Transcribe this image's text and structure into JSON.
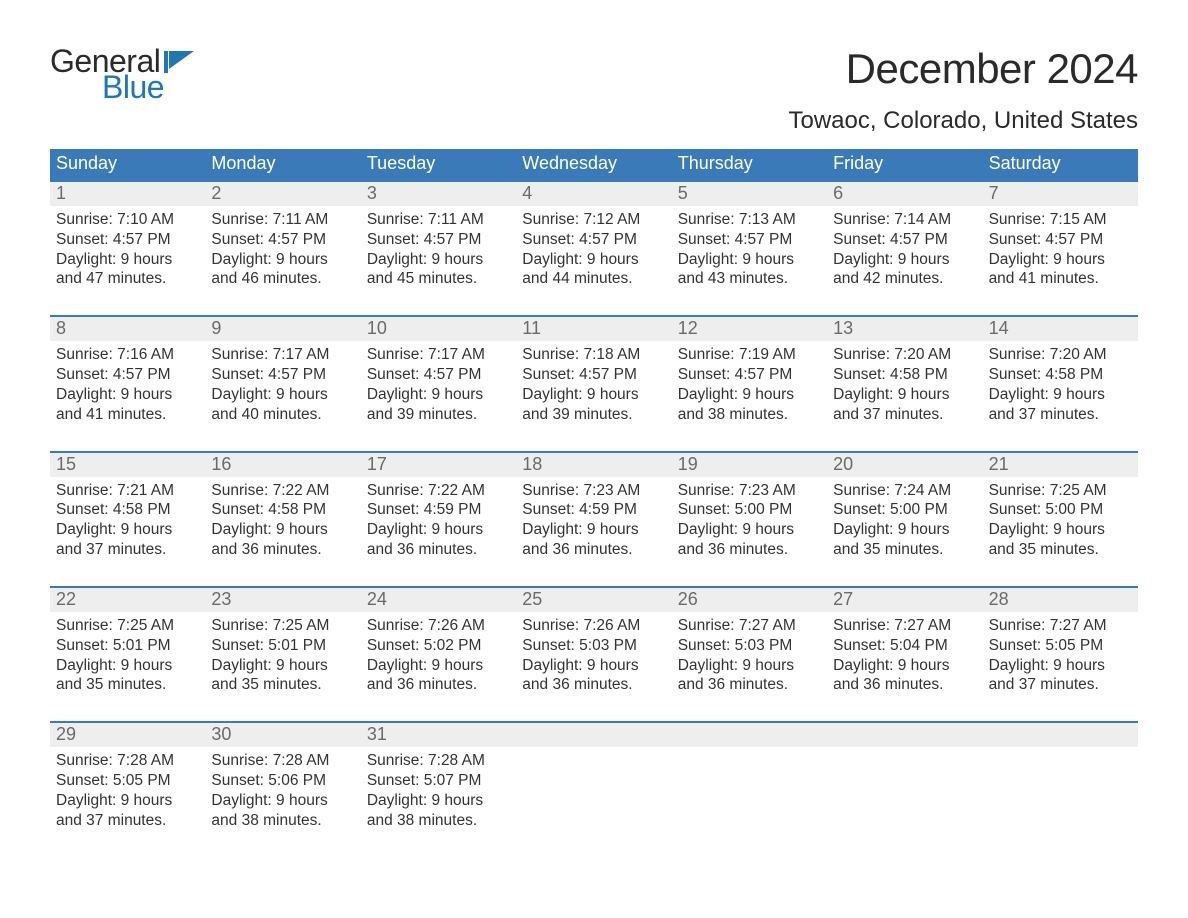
{
  "brand": {
    "word1": "General",
    "word2": "Blue",
    "flag_color": "#1f77b4",
    "text_dark": "#2a2a2a"
  },
  "title": "December 2024",
  "location": "Towaoc, Colorado, United States",
  "colors": {
    "header_bg": "#3a7ab8",
    "header_text": "#ffffff",
    "daynum_bg": "#eeeeee",
    "daynum_text": "#6a6a6a",
    "body_text": "#333333",
    "week_border": "#3a7ab8",
    "page_bg": "#ffffff"
  },
  "fonts": {
    "title_size": 42,
    "location_size": 24,
    "dow_size": 18,
    "daynum_size": 18,
    "cell_size": 15.5
  },
  "days_of_week": [
    "Sunday",
    "Monday",
    "Tuesday",
    "Wednesday",
    "Thursday",
    "Friday",
    "Saturday"
  ],
  "weeks": [
    [
      {
        "n": "1",
        "sunrise": "Sunrise: 7:10 AM",
        "sunset": "Sunset: 4:57 PM",
        "d1": "Daylight: 9 hours",
        "d2": "and 47 minutes."
      },
      {
        "n": "2",
        "sunrise": "Sunrise: 7:11 AM",
        "sunset": "Sunset: 4:57 PM",
        "d1": "Daylight: 9 hours",
        "d2": "and 46 minutes."
      },
      {
        "n": "3",
        "sunrise": "Sunrise: 7:11 AM",
        "sunset": "Sunset: 4:57 PM",
        "d1": "Daylight: 9 hours",
        "d2": "and 45 minutes."
      },
      {
        "n": "4",
        "sunrise": "Sunrise: 7:12 AM",
        "sunset": "Sunset: 4:57 PM",
        "d1": "Daylight: 9 hours",
        "d2": "and 44 minutes."
      },
      {
        "n": "5",
        "sunrise": "Sunrise: 7:13 AM",
        "sunset": "Sunset: 4:57 PM",
        "d1": "Daylight: 9 hours",
        "d2": "and 43 minutes."
      },
      {
        "n": "6",
        "sunrise": "Sunrise: 7:14 AM",
        "sunset": "Sunset: 4:57 PM",
        "d1": "Daylight: 9 hours",
        "d2": "and 42 minutes."
      },
      {
        "n": "7",
        "sunrise": "Sunrise: 7:15 AM",
        "sunset": "Sunset: 4:57 PM",
        "d1": "Daylight: 9 hours",
        "d2": "and 41 minutes."
      }
    ],
    [
      {
        "n": "8",
        "sunrise": "Sunrise: 7:16 AM",
        "sunset": "Sunset: 4:57 PM",
        "d1": "Daylight: 9 hours",
        "d2": "and 41 minutes."
      },
      {
        "n": "9",
        "sunrise": "Sunrise: 7:17 AM",
        "sunset": "Sunset: 4:57 PM",
        "d1": "Daylight: 9 hours",
        "d2": "and 40 minutes."
      },
      {
        "n": "10",
        "sunrise": "Sunrise: 7:17 AM",
        "sunset": "Sunset: 4:57 PM",
        "d1": "Daylight: 9 hours",
        "d2": "and 39 minutes."
      },
      {
        "n": "11",
        "sunrise": "Sunrise: 7:18 AM",
        "sunset": "Sunset: 4:57 PM",
        "d1": "Daylight: 9 hours",
        "d2": "and 39 minutes."
      },
      {
        "n": "12",
        "sunrise": "Sunrise: 7:19 AM",
        "sunset": "Sunset: 4:57 PM",
        "d1": "Daylight: 9 hours",
        "d2": "and 38 minutes."
      },
      {
        "n": "13",
        "sunrise": "Sunrise: 7:20 AM",
        "sunset": "Sunset: 4:58 PM",
        "d1": "Daylight: 9 hours",
        "d2": "and 37 minutes."
      },
      {
        "n": "14",
        "sunrise": "Sunrise: 7:20 AM",
        "sunset": "Sunset: 4:58 PM",
        "d1": "Daylight: 9 hours",
        "d2": "and 37 minutes."
      }
    ],
    [
      {
        "n": "15",
        "sunrise": "Sunrise: 7:21 AM",
        "sunset": "Sunset: 4:58 PM",
        "d1": "Daylight: 9 hours",
        "d2": "and 37 minutes."
      },
      {
        "n": "16",
        "sunrise": "Sunrise: 7:22 AM",
        "sunset": "Sunset: 4:58 PM",
        "d1": "Daylight: 9 hours",
        "d2": "and 36 minutes."
      },
      {
        "n": "17",
        "sunrise": "Sunrise: 7:22 AM",
        "sunset": "Sunset: 4:59 PM",
        "d1": "Daylight: 9 hours",
        "d2": "and 36 minutes."
      },
      {
        "n": "18",
        "sunrise": "Sunrise: 7:23 AM",
        "sunset": "Sunset: 4:59 PM",
        "d1": "Daylight: 9 hours",
        "d2": "and 36 minutes."
      },
      {
        "n": "19",
        "sunrise": "Sunrise: 7:23 AM",
        "sunset": "Sunset: 5:00 PM",
        "d1": "Daylight: 9 hours",
        "d2": "and 36 minutes."
      },
      {
        "n": "20",
        "sunrise": "Sunrise: 7:24 AM",
        "sunset": "Sunset: 5:00 PM",
        "d1": "Daylight: 9 hours",
        "d2": "and 35 minutes."
      },
      {
        "n": "21",
        "sunrise": "Sunrise: 7:25 AM",
        "sunset": "Sunset: 5:00 PM",
        "d1": "Daylight: 9 hours",
        "d2": "and 35 minutes."
      }
    ],
    [
      {
        "n": "22",
        "sunrise": "Sunrise: 7:25 AM",
        "sunset": "Sunset: 5:01 PM",
        "d1": "Daylight: 9 hours",
        "d2": "and 35 minutes."
      },
      {
        "n": "23",
        "sunrise": "Sunrise: 7:25 AM",
        "sunset": "Sunset: 5:01 PM",
        "d1": "Daylight: 9 hours",
        "d2": "and 35 minutes."
      },
      {
        "n": "24",
        "sunrise": "Sunrise: 7:26 AM",
        "sunset": "Sunset: 5:02 PM",
        "d1": "Daylight: 9 hours",
        "d2": "and 36 minutes."
      },
      {
        "n": "25",
        "sunrise": "Sunrise: 7:26 AM",
        "sunset": "Sunset: 5:03 PM",
        "d1": "Daylight: 9 hours",
        "d2": "and 36 minutes."
      },
      {
        "n": "26",
        "sunrise": "Sunrise: 7:27 AM",
        "sunset": "Sunset: 5:03 PM",
        "d1": "Daylight: 9 hours",
        "d2": "and 36 minutes."
      },
      {
        "n": "27",
        "sunrise": "Sunrise: 7:27 AM",
        "sunset": "Sunset: 5:04 PM",
        "d1": "Daylight: 9 hours",
        "d2": "and 36 minutes."
      },
      {
        "n": "28",
        "sunrise": "Sunrise: 7:27 AM",
        "sunset": "Sunset: 5:05 PM",
        "d1": "Daylight: 9 hours",
        "d2": "and 37 minutes."
      }
    ],
    [
      {
        "n": "29",
        "sunrise": "Sunrise: 7:28 AM",
        "sunset": "Sunset: 5:05 PM",
        "d1": "Daylight: 9 hours",
        "d2": "and 37 minutes."
      },
      {
        "n": "30",
        "sunrise": "Sunrise: 7:28 AM",
        "sunset": "Sunset: 5:06 PM",
        "d1": "Daylight: 9 hours",
        "d2": "and 38 minutes."
      },
      {
        "n": "31",
        "sunrise": "Sunrise: 7:28 AM",
        "sunset": "Sunset: 5:07 PM",
        "d1": "Daylight: 9 hours",
        "d2": "and 38 minutes."
      },
      null,
      null,
      null,
      null
    ]
  ]
}
